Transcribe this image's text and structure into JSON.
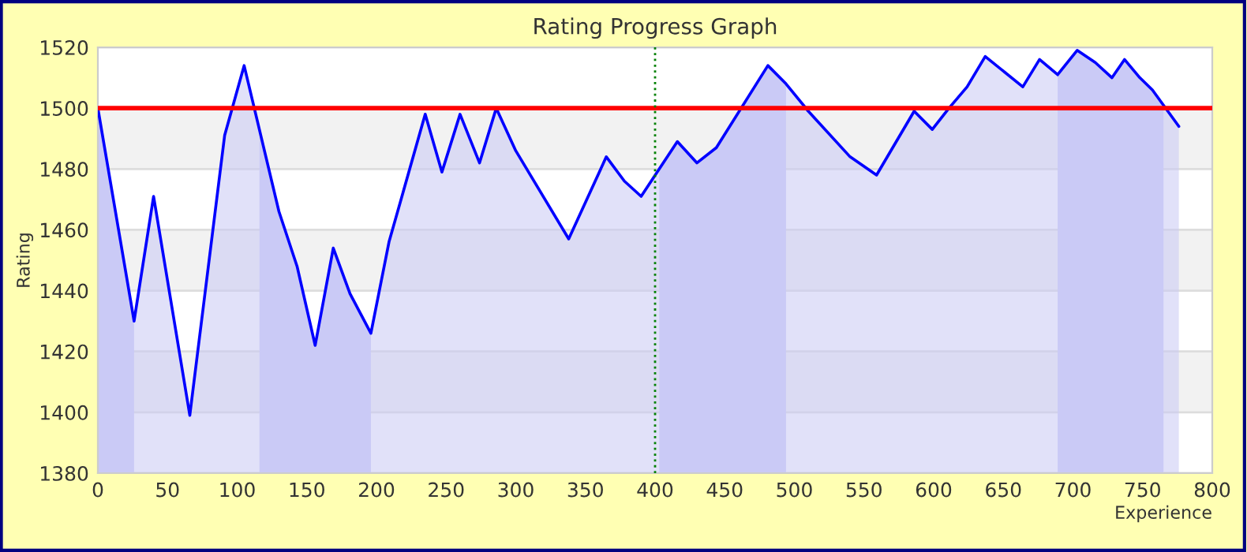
{
  "chart_data": {
    "type": "area",
    "title": "Rating Progress Graph",
    "xlabel": "Experience",
    "ylabel": "Rating",
    "x": [
      0,
      26,
      40,
      66,
      91,
      105,
      130,
      143,
      156,
      169,
      181,
      196,
      209,
      235,
      247,
      260,
      274,
      286,
      300,
      338,
      365,
      378,
      390,
      416,
      430,
      444,
      481,
      494,
      510,
      540,
      559,
      586,
      599,
      611,
      624,
      637,
      664,
      676,
      689,
      703,
      716,
      728,
      737,
      748,
      757,
      776
    ],
    "series": [
      {
        "color": "#0000ff",
        "values": [
          1500,
          1430,
          1471,
          1399,
          1491,
          1514,
          1466,
          1448,
          1422,
          1454,
          1439,
          1426,
          1456,
          1498,
          1479,
          1498,
          1482,
          1500,
          1486,
          1457,
          1484,
          1476,
          1471,
          1489,
          1482,
          1487,
          1514,
          1508,
          1499,
          1484,
          1478,
          1499,
          1493,
          1500,
          1507,
          1517,
          1507,
          1516,
          1511,
          1519,
          1515,
          1510,
          1516,
          1510,
          1506,
          1494
        ]
      }
    ],
    "xlim": [
      0,
      800
    ],
    "xticks": [
      0,
      50,
      100,
      150,
      200,
      250,
      300,
      350,
      400,
      450,
      500,
      550,
      600,
      650,
      700,
      750,
      800
    ],
    "ylim": [
      1380,
      1520
    ],
    "yticks": [
      1380,
      1400,
      1420,
      1440,
      1460,
      1480,
      1500,
      1520
    ],
    "grid": "y",
    "legend": false,
    "ref_lines": [
      {
        "axis": "y",
        "value": 1500,
        "color": "#ff0000",
        "line_style": "solid"
      },
      {
        "axis": "x",
        "value": 400,
        "color": "#008000",
        "line_style": "dotted"
      }
    ],
    "bands": [
      {
        "axis": "x",
        "from": 0,
        "to": 26,
        "color": "#ccccf8"
      },
      {
        "axis": "x",
        "from": 116,
        "to": 196,
        "color": "#ccccf8"
      },
      {
        "axis": "x",
        "from": 403,
        "to": 494,
        "color": "#ccccf8"
      },
      {
        "axis": "x",
        "from": 689,
        "to": 765,
        "color": "#ccccf8"
      }
    ]
  }
}
